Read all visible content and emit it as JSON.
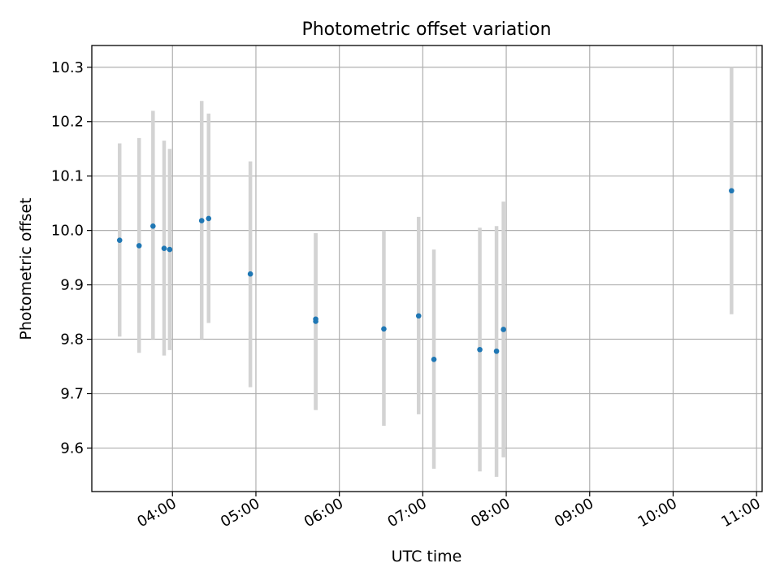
{
  "chart_data": {
    "type": "scatter",
    "title": "Photometric offset variation",
    "xlabel": "UTC time",
    "ylabel": "Photometric offset",
    "xlim": [
      "03:02",
      "11:04"
    ],
    "ylim": [
      9.52,
      10.34
    ],
    "x_ticks": [
      "04:00",
      "05:00",
      "06:00",
      "07:00",
      "08:00",
      "09:00",
      "10:00",
      "11:00"
    ],
    "y_ticks": [
      9.6,
      9.7,
      9.8,
      9.9,
      10.0,
      10.1,
      10.2,
      10.3
    ],
    "grid": true,
    "colors": {
      "point": "#1f77b4",
      "errorbar": "#d3d3d3",
      "grid": "#b0b0b0"
    },
    "series": [
      {
        "points": [
          {
            "x": "03:22",
            "y": 9.982,
            "low": 9.805,
            "high": 10.16
          },
          {
            "x": "03:36",
            "y": 9.972,
            "low": 9.775,
            "high": 10.17
          },
          {
            "x": "03:46",
            "y": 10.008,
            "low": 9.8,
            "high": 10.22
          },
          {
            "x": "03:54",
            "y": 9.967,
            "low": 9.77,
            "high": 10.165
          },
          {
            "x": "03:58",
            "y": 9.965,
            "low": 9.78,
            "high": 10.15
          },
          {
            "x": "04:21",
            "y": 10.018,
            "low": 9.8,
            "high": 10.238
          },
          {
            "x": "04:26",
            "y": 10.022,
            "low": 9.83,
            "high": 10.215
          },
          {
            "x": "04:56",
            "y": 9.92,
            "low": 9.712,
            "high": 10.127
          },
          {
            "x": "05:43",
            "y": 9.833,
            "low": 9.67,
            "high": 9.995
          },
          {
            "x": "05:43",
            "y": 9.837,
            "low": 9.67,
            "high": 9.995
          },
          {
            "x": "06:32",
            "y": 9.819,
            "low": 9.641,
            "high": 10.0
          },
          {
            "x": "06:57",
            "y": 9.843,
            "low": 9.662,
            "high": 10.025
          },
          {
            "x": "07:08",
            "y": 9.763,
            "low": 9.562,
            "high": 9.965
          },
          {
            "x": "07:41",
            "y": 9.781,
            "low": 9.557,
            "high": 10.005
          },
          {
            "x": "07:53",
            "y": 9.778,
            "low": 9.547,
            "high": 10.008
          },
          {
            "x": "07:58",
            "y": 9.818,
            "low": 9.583,
            "high": 10.053
          },
          {
            "x": "10:42",
            "y": 10.073,
            "low": 9.846,
            "high": 10.3
          }
        ]
      }
    ]
  }
}
